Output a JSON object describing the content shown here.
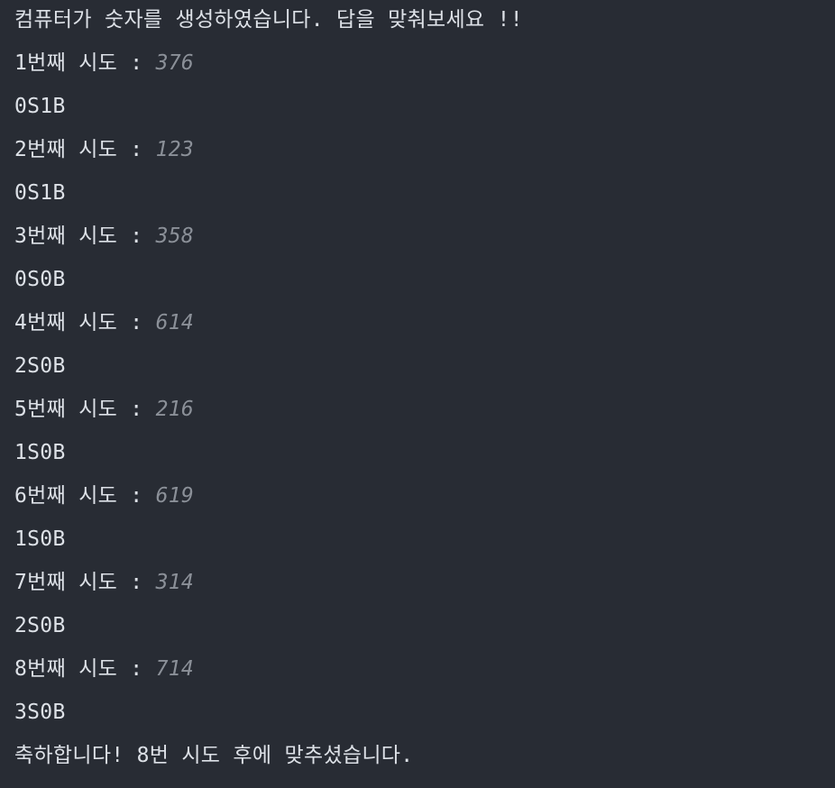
{
  "console": {
    "intro": "컴퓨터가 숫자를 생성하였습니다. 답을 맞춰보세요 !!",
    "attempts": [
      {
        "prompt": "1번째 시도 : ",
        "input": "376",
        "result": "0S1B"
      },
      {
        "prompt": "2번째 시도 : ",
        "input": "123",
        "result": "0S1B"
      },
      {
        "prompt": "3번째 시도 : ",
        "input": "358",
        "result": "0S0B"
      },
      {
        "prompt": "4번째 시도 : ",
        "input": "614",
        "result": "2S0B"
      },
      {
        "prompt": "5번째 시도 : ",
        "input": "216",
        "result": "1S0B"
      },
      {
        "prompt": "6번째 시도 : ",
        "input": "619",
        "result": "1S0B"
      },
      {
        "prompt": "7번째 시도 : ",
        "input": "314",
        "result": "2S0B"
      },
      {
        "prompt": "8번째 시도 : ",
        "input": "714",
        "result": "3S0B"
      }
    ],
    "final": "축하합니다! 8번 시도 후에 맞추셨습니다."
  },
  "colors": {
    "background": "#282c34",
    "text": "#dde1e7",
    "input": "#8b9098"
  }
}
